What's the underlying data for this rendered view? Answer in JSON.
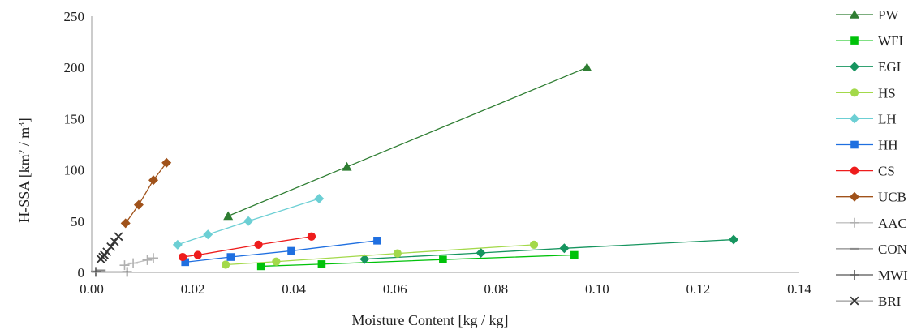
{
  "chart_data": {
    "type": "line",
    "title": "",
    "xlabel": "Moisture Content [kg / kg]",
    "ylabel_main": "H-SSA  [km",
    "ylabel_sup1": "2",
    "ylabel_mid": " / m",
    "ylabel_sup2": "3",
    "ylabel_end": "]",
    "xlim": [
      0,
      0.14
    ],
    "ylim": [
      0,
      250
    ],
    "xticks": [
      0,
      0.02,
      0.04,
      0.06,
      0.08,
      0.1,
      0.12,
      0.14
    ],
    "xtick_labels": [
      "0.00",
      "0.02",
      "0.04",
      "0.06",
      "0.08",
      "0.10",
      "0.12",
      "0.14"
    ],
    "yticks": [
      0,
      50,
      100,
      150,
      200,
      250
    ],
    "ytick_labels": [
      "0",
      "50",
      "100",
      "150",
      "200",
      "250"
    ],
    "grid": false,
    "legend_position": "right",
    "series": [
      {
        "name": "PW",
        "marker": "triangle",
        "color": "#2e7d32",
        "line": "#2e7d32",
        "x": [
          0.027,
          0.0505,
          0.098
        ],
        "y": [
          55,
          103,
          200
        ]
      },
      {
        "name": "WFI",
        "marker": "square",
        "color": "#00c20a",
        "line": "#00c20a",
        "x": [
          0.0335,
          0.0455,
          0.0695,
          0.0955
        ],
        "y": [
          6,
          8,
          12.5,
          17
        ]
      },
      {
        "name": "EGI",
        "marker": "diamond",
        "color": "#16955f",
        "line": "#16955f",
        "x": [
          0.054,
          0.077,
          0.0935,
          0.127
        ],
        "y": [
          13,
          19,
          23.5,
          32
        ]
      },
      {
        "name": "HS",
        "marker": "circle",
        "color": "#a3d94a",
        "line": "#a3d94a",
        "x": [
          0.0265,
          0.0365,
          0.0605,
          0.0875
        ],
        "y": [
          7.5,
          10.5,
          18.5,
          27
        ]
      },
      {
        "name": "LH",
        "marker": "diamond",
        "color": "#6ccfd4",
        "line": "#6ccfd4",
        "x": [
          0.017,
          0.023,
          0.031,
          0.045
        ],
        "y": [
          27,
          37,
          50,
          72
        ]
      },
      {
        "name": "HH",
        "marker": "square",
        "color": "#1f6fe0",
        "line": "#1f6fe0",
        "x": [
          0.0185,
          0.0275,
          0.0395,
          0.0565
        ],
        "y": [
          10,
          15,
          21,
          31
        ]
      },
      {
        "name": "CS",
        "marker": "circle",
        "color": "#ee1c1c",
        "line": "#ee1c1c",
        "x": [
          0.018,
          0.021,
          0.033,
          0.0435
        ],
        "y": [
          15,
          17,
          27,
          35
        ]
      },
      {
        "name": "UCB",
        "marker": "diamond",
        "color": "#a0521a",
        "line": "#a0521a",
        "x": [
          0.0067,
          0.0093,
          0.0122,
          0.0148
        ],
        "y": [
          48,
          66,
          90,
          107
        ]
      },
      {
        "name": "AAC",
        "marker": "plus",
        "color": "#b0b0b0",
        "line": "#c0c0c0",
        "x": [
          0.0065,
          0.0082,
          0.011,
          0.0122
        ],
        "y": [
          7,
          9,
          12,
          14
        ]
      },
      {
        "name": "CON",
        "marker": "dash",
        "color": "#888888",
        "line": "#888888",
        "x": [
          0.0008,
          0.0018
        ],
        "y": [
          1,
          2
        ]
      },
      {
        "name": "MWI",
        "marker": "plus",
        "color": "#555555",
        "line": "#555555",
        "x": [
          0.0008,
          0.007
        ],
        "y": [
          0.5,
          0.5
        ]
      },
      {
        "name": "BRI",
        "marker": "x",
        "color": "#333333",
        "line": "#999999",
        "x": [
          0.0018,
          0.0022,
          0.0025,
          0.003,
          0.0038,
          0.0045,
          0.0053
        ],
        "y": [
          13,
          15,
          17,
          20,
          25,
          30,
          35
        ]
      }
    ]
  }
}
